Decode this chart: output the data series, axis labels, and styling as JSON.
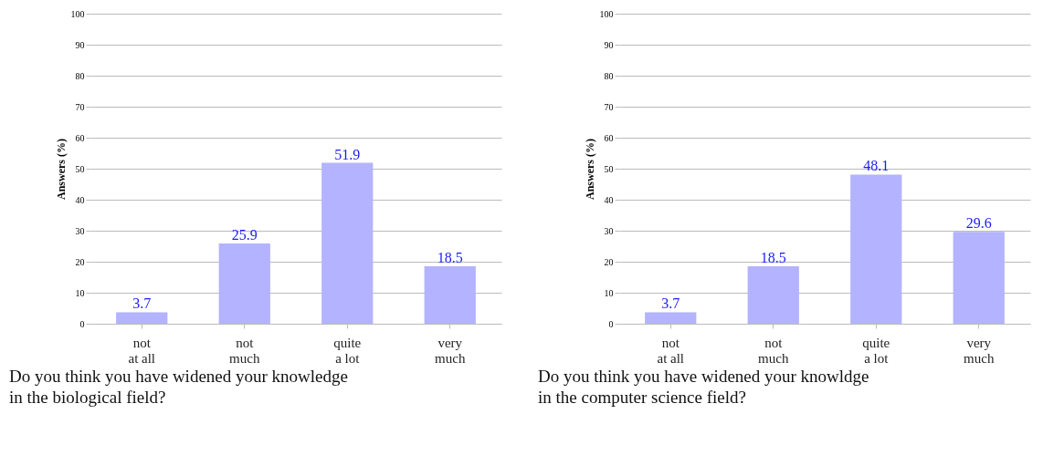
{
  "chart_data": [
    {
      "type": "bar",
      "title": "Do you think you have widened your knowledge in the biological field?",
      "ylabel": "Answers (%)",
      "categories": [
        "not\nat all",
        "not\nmuch",
        "quite\na lot",
        "very\nmuch"
      ],
      "values": [
        3.7,
        25.9,
        51.9,
        18.5
      ],
      "color": "#b3b3ff",
      "ylim": [
        0,
        100
      ],
      "yticks": [
        0,
        10,
        20,
        30,
        40,
        50,
        60,
        70,
        80,
        90,
        100
      ],
      "grid": "y",
      "data_labels": true
    },
    {
      "type": "bar",
      "title": "Do you think you have widened your knowldge in the computer science field?",
      "ylabel": "Answers (%)",
      "categories": [
        "not\nat all",
        "not\nmuch",
        "quite\na lot",
        "very\nmuch"
      ],
      "values": [
        3.7,
        18.5,
        48.1,
        29.6
      ],
      "color": "#b3b3ff",
      "ylim": [
        0,
        100
      ],
      "yticks": [
        0,
        10,
        20,
        30,
        40,
        50,
        60,
        70,
        80,
        90,
        100
      ],
      "grid": "y",
      "data_labels": true
    }
  ]
}
